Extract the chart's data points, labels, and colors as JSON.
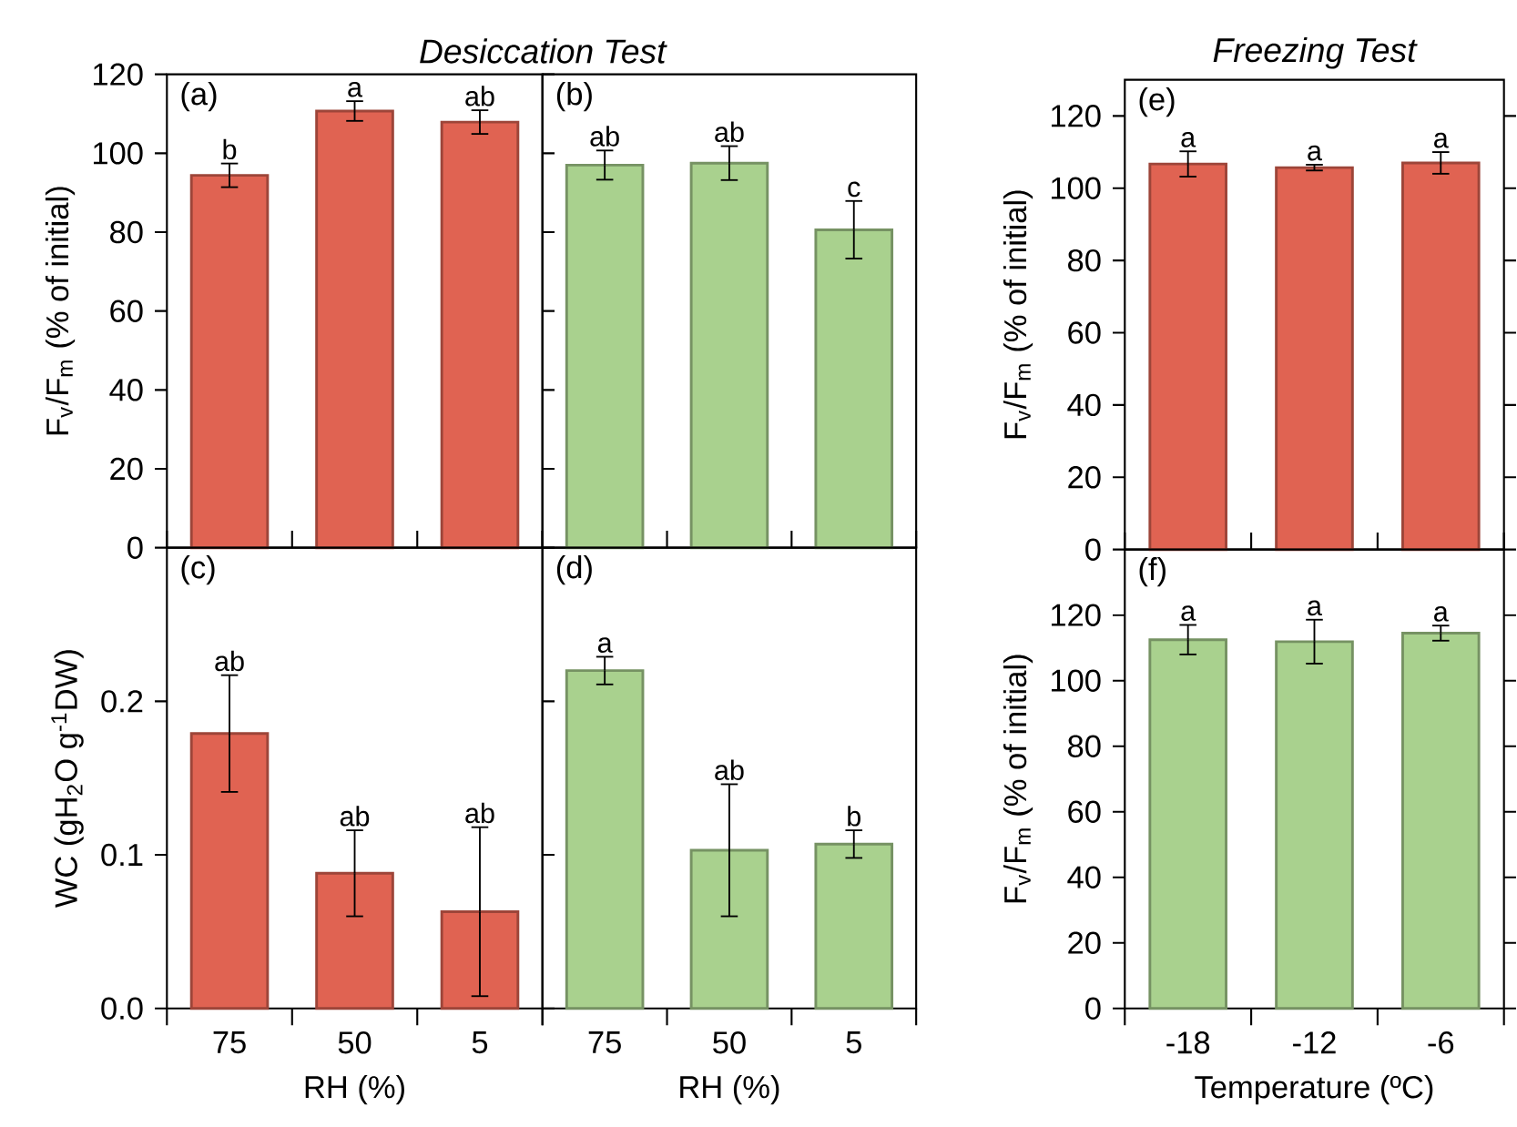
{
  "chart_data": [
    {
      "type": "bar",
      "title": "Desiccation Test",
      "ylabel": "F$_{v}$/F$_{m}$ (% of initial)",
      "categories": [
        "75",
        "50",
        "5"
      ],
      "values": [
        94.4,
        110.7,
        107.9
      ],
      "errors": [
        3,
        2.5,
        3
      ],
      "color": "#e06352",
      "ylim": [
        0,
        120
      ],
      "yticks": [
        0,
        20,
        40,
        60,
        80,
        100,
        120
      ],
      "tick_labels": "y",
      "annotations": [
        "(a)",
        {
          "text": "b",
          "x": "75",
          "y": 97.4
        },
        {
          "text": "a",
          "x": "50",
          "y": 113.2
        },
        {
          "text": "ab",
          "x": "5",
          "y": 110.9
        }
      ]
    },
    {
      "type": "bar",
      "categories": [
        "75",
        "50",
        "5"
      ],
      "values": [
        97,
        97.5,
        80.6
      ],
      "errors": [
        3.7,
        4.3,
        7.3
      ],
      "color": "#a9d18e",
      "ylim": [
        0,
        120
      ],
      "tick_labels": false,
      "annotations": [
        "(b)",
        {
          "text": "ab",
          "x": "75",
          "y": 100.7
        },
        {
          "text": "ab",
          "x": "50",
          "y": 101.8
        },
        {
          "text": "c",
          "x": "5",
          "y": 87.9
        }
      ]
    },
    {
      "type": "bar",
      "xlabel": "RH (%)",
      "ylabel": "WC (gH$_{2}$O g$^{-1}$DW)",
      "categories": [
        "75",
        "50",
        "5"
      ],
      "values": [
        0.179,
        0.088,
        0.063
      ],
      "errors": [
        0.038,
        0.028,
        0.055
      ],
      "color": "#e06352",
      "ylim": [
        0,
        0.3
      ],
      "yticks": [
        {
          "value": 0,
          "label": "0.0"
        },
        0.1,
        0.2
      ],
      "annotations": [
        "(c)",
        {
          "text": "ab",
          "x": "75",
          "y": 0.217
        },
        {
          "text": "ab",
          "x": "50",
          "y": 0.116
        },
        {
          "text": "ab",
          "x": "5",
          "y": 0.118
        }
      ]
    },
    {
      "type": "bar",
      "xlabel": "RH (%)",
      "categories": [
        "75",
        "50",
        "5"
      ],
      "values": [
        0.22,
        0.103,
        0.107
      ],
      "errors": [
        0.009,
        0.043,
        0.009
      ],
      "color": "#a9d18e",
      "ylim": [
        0,
        0.3
      ],
      "tick_labels": "x",
      "annotations": [
        "(d)",
        {
          "text": "a",
          "x": "75",
          "y": 0.229
        },
        {
          "text": "ab",
          "x": "50",
          "y": 0.146
        },
        {
          "text": "b",
          "x": "5",
          "y": 0.116
        }
      ]
    },
    {
      "type": "bar",
      "title": "Freezing Test",
      "ylabel": "F$_{v}$/F$_{m}$ (% of initial)",
      "categories": [
        "-18",
        "-12",
        "-6"
      ],
      "values": [
        106.7,
        105.7,
        107
      ],
      "errors": [
        3.5,
        0.8,
        3
      ],
      "color": "#e06352",
      "ylim": [
        0,
        130
      ],
      "yticks": [
        0,
        20,
        40,
        60,
        80,
        100,
        120
      ],
      "tick_labels": "y",
      "annotations": [
        "(e)",
        {
          "text": "a",
          "x": "-18",
          "y": 110.2
        },
        {
          "text": "a",
          "x": "-12",
          "y": 106.5
        },
        {
          "text": "a",
          "x": "-6",
          "y": 110
        }
      ]
    },
    {
      "type": "bar",
      "xlabel": "Temperature (ºC)",
      "ylabel": "F$_{v}$/F$_{m}$ (% of initial)",
      "categories": [
        "-18",
        "-12",
        "-6"
      ],
      "values": [
        112.5,
        111.9,
        114.5
      ],
      "errors": [
        4.5,
        6.7,
        2.3
      ],
      "color": "#a9d18e",
      "ylim": [
        0,
        140
      ],
      "yticks": [
        0,
        20,
        40,
        60,
        80,
        100,
        120
      ],
      "annotations": [
        "(f)",
        {
          "text": "a",
          "x": "-18",
          "y": 117
        },
        {
          "text": "a",
          "x": "-12",
          "y": 118.6
        },
        {
          "text": "a",
          "x": "-6",
          "y": 116.8
        }
      ]
    }
  ]
}
